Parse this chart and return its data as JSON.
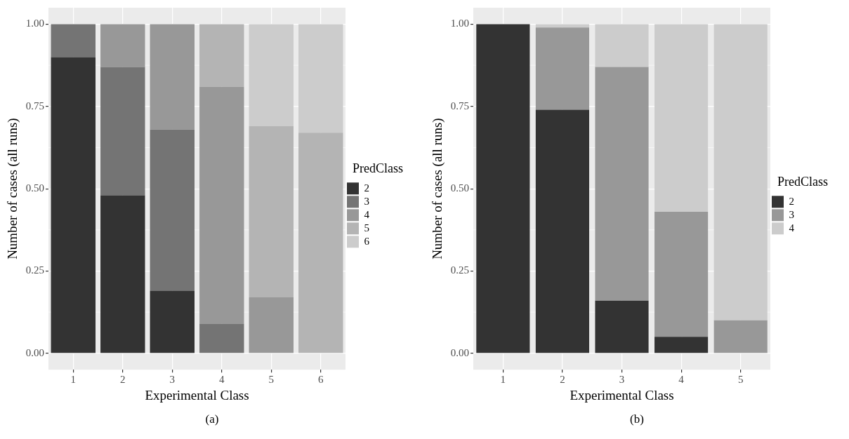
{
  "chart_data": [
    {
      "type": "bar",
      "stacked": true,
      "categories": [
        "1",
        "2",
        "3",
        "4",
        "5",
        "6"
      ],
      "xlabel": "Experimental Class",
      "ylabel": "Number of cases (all runs)",
      "legend_title": "PredClass",
      "legend": "right",
      "grid": true,
      "ylim": [
        -0.05,
        1.05
      ],
      "yticks": [
        {
          "value": 0,
          "label": "0.00"
        },
        {
          "value": 0.25,
          "label": "0.25"
        },
        {
          "value": 0.5,
          "label": "0.50"
        },
        {
          "value": 0.75,
          "label": "0.75"
        },
        {
          "value": 1,
          "label": "1.00"
        }
      ],
      "series": [
        {
          "name": "2",
          "color": "#333333",
          "values": [
            0.9,
            0.48,
            0.19,
            null,
            null,
            null
          ]
        },
        {
          "name": "3",
          "color": "#747474",
          "values": [
            0.1,
            0.39,
            0.49,
            0.09,
            null,
            null
          ]
        },
        {
          "name": "4",
          "color": "#989898",
          "values": [
            null,
            0.13,
            0.32,
            0.72,
            0.17,
            null
          ]
        },
        {
          "name": "5",
          "color": "#b4b4b4",
          "values": [
            null,
            null,
            null,
            0.19,
            0.52,
            0.67
          ]
        },
        {
          "name": "6",
          "color": "#cccccc",
          "values": [
            null,
            null,
            null,
            null,
            0.31,
            0.33
          ]
        }
      ],
      "annotations": [
        "(a)"
      ]
    },
    {
      "type": "bar",
      "stacked": true,
      "categories": [
        "1",
        "2",
        "3",
        "4",
        "5"
      ],
      "xlabel": "Experimental Class",
      "ylabel": "Number of cases (all runs)",
      "legend_title": "PredClass",
      "legend": "right",
      "grid": true,
      "ylim": [
        -0.05,
        1.05
      ],
      "yticks": [
        {
          "value": 0,
          "label": "0.00"
        },
        {
          "value": 0.25,
          "label": "0.25"
        },
        {
          "value": 0.5,
          "label": "0.50"
        },
        {
          "value": 0.75,
          "label": "0.75"
        },
        {
          "value": 1,
          "label": "1.00"
        }
      ],
      "series": [
        {
          "name": "2",
          "color": "#333333",
          "values": [
            1.0,
            0.74,
            0.16,
            0.05,
            null
          ]
        },
        {
          "name": "3",
          "color": "#989898",
          "values": [
            null,
            0.25,
            0.71,
            0.38,
            0.1
          ]
        },
        {
          "name": "4",
          "color": "#cccccc",
          "values": [
            null,
            0.01,
            0.13,
            0.57,
            0.9
          ]
        }
      ],
      "annotations": [
        "(b)"
      ]
    }
  ]
}
